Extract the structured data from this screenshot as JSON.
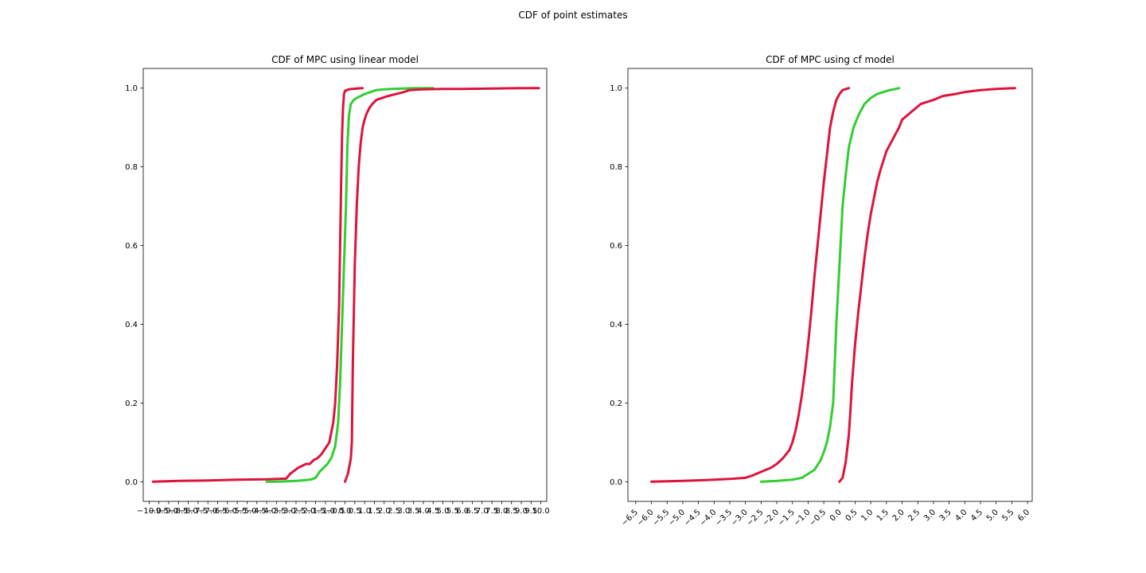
{
  "suptitle": "CDF of point estimates",
  "colors": {
    "red": "#dc143c",
    "green": "#32cd32"
  },
  "chart_data": [
    {
      "type": "line",
      "title": "CDF of MPC using linear model",
      "xlabel": "",
      "ylabel": "",
      "xlim": [
        -10.3,
        10.3
      ],
      "ylim": [
        -0.05,
        1.05
      ],
      "xticks": [
        -10.0,
        -9.5,
        -9.0,
        -8.5,
        -8.0,
        -7.5,
        -7.0,
        -6.5,
        -6.0,
        -5.5,
        -5.0,
        -4.5,
        -4.0,
        -3.5,
        -3.0,
        -2.5,
        -2.0,
        -1.5,
        -1.0,
        -0.5,
        0.0,
        0.5,
        1.0,
        1.5,
        2.0,
        2.5,
        3.0,
        3.5,
        4.0,
        4.5,
        5.0,
        5.5,
        6.0,
        6.5,
        7.0,
        7.5,
        8.0,
        8.5,
        9.0,
        9.5,
        10.0
      ],
      "xtick_labels": [
        "−10.0",
        "−9.5",
        "−9.0",
        "−8.5",
        "−8.0",
        "−7.5",
        "−7.0",
        "−6.5",
        "−6.0",
        "−5.5",
        "−5.0",
        "−4.5",
        "−4.0",
        "−3.5",
        "−3.0",
        "−2.5",
        "−2.0",
        "−1.5",
        "−1.0",
        "−0.5",
        "0.0",
        "0.5",
        "1.0",
        "1.5",
        "2.0",
        "2.5",
        "3.0",
        "3.5",
        "4.0",
        "4.5",
        "5.0",
        "5.5",
        "6.0",
        "6.5",
        "7.0",
        "7.5",
        "8.0",
        "8.5",
        "9.0",
        "9.5",
        "10.0"
      ],
      "xtick_rotation": 0,
      "yticks": [
        0.0,
        0.2,
        0.4,
        0.6,
        0.8,
        1.0
      ],
      "ytick_labels": [
        "0.0",
        "0.2",
        "0.4",
        "0.6",
        "0.8",
        "1.0"
      ],
      "series": [
        {
          "color": "#dc143c",
          "x": [
            -9.8,
            -8.5,
            -7.0,
            -5.5,
            -4.0,
            -3.0,
            -2.8,
            -2.4,
            -2.0,
            -1.8,
            -1.6,
            -1.4,
            -1.2,
            -1.0,
            -0.8,
            -0.6,
            -0.5,
            -0.4,
            -0.3,
            -0.25,
            -0.2,
            -0.15,
            -0.1,
            -0.05,
            0.0,
            0.1,
            0.2,
            0.35,
            0.6,
            0.9
          ],
          "y": [
            0.0,
            0.002,
            0.003,
            0.005,
            0.006,
            0.008,
            0.02,
            0.035,
            0.045,
            0.045,
            0.055,
            0.06,
            0.07,
            0.085,
            0.1,
            0.15,
            0.2,
            0.3,
            0.45,
            0.6,
            0.75,
            0.88,
            0.95,
            0.985,
            0.993,
            0.995,
            0.997,
            0.998,
            0.999,
            1.0
          ]
        },
        {
          "color": "#32cd32",
          "x": [
            -4.0,
            -3.5,
            -3.0,
            -2.5,
            -2.0,
            -1.7,
            -1.5,
            -1.3,
            -1.1,
            -0.9,
            -0.7,
            -0.5,
            -0.35,
            -0.25,
            -0.15,
            -0.05,
            0.05,
            0.12,
            0.2,
            0.3,
            0.45,
            0.6,
            0.8,
            1.0,
            1.3,
            1.6,
            2.0,
            2.4,
            3.0,
            3.5,
            4.5
          ],
          "y": [
            0.0,
            0.0,
            0.001,
            0.002,
            0.004,
            0.006,
            0.01,
            0.025,
            0.035,
            0.045,
            0.06,
            0.09,
            0.15,
            0.25,
            0.4,
            0.55,
            0.7,
            0.85,
            0.93,
            0.96,
            0.97,
            0.975,
            0.98,
            0.985,
            0.99,
            0.995,
            0.997,
            0.998,
            0.999,
            1.0,
            1.0
          ]
        },
        {
          "color": "#dc143c",
          "x": [
            0.0,
            0.15,
            0.3,
            0.35,
            0.4,
            0.5,
            0.6,
            0.7,
            0.8,
            0.9,
            1.0,
            1.1,
            1.25,
            1.4,
            1.6,
            1.9,
            2.2,
            2.6,
            3.0,
            3.3,
            3.6,
            4.0,
            5.0,
            6.0,
            7.5,
            9.0,
            9.9
          ],
          "y": [
            0.0,
            0.02,
            0.06,
            0.1,
            0.3,
            0.55,
            0.7,
            0.8,
            0.86,
            0.9,
            0.92,
            0.935,
            0.95,
            0.96,
            0.97,
            0.975,
            0.98,
            0.985,
            0.99,
            0.995,
            0.996,
            0.997,
            0.998,
            0.998,
            0.999,
            1.0,
            1.0
          ]
        }
      ]
    },
    {
      "type": "line",
      "title": "CDF of MPC using cf model",
      "xlabel": "",
      "ylabel": "",
      "xlim": [
        -6.75,
        6.15
      ],
      "ylim": [
        -0.05,
        1.05
      ],
      "xticks": [
        -6.5,
        -6.0,
        -5.5,
        -5.0,
        -4.5,
        -4.0,
        -3.5,
        -3.0,
        -2.5,
        -2.0,
        -1.5,
        -1.0,
        -0.5,
        0.0,
        0.5,
        1.0,
        1.5,
        2.0,
        2.5,
        3.0,
        3.5,
        4.0,
        4.5,
        5.0,
        5.5,
        6.0
      ],
      "xtick_labels": [
        "−6.5",
        "−6.0",
        "−5.5",
        "−5.0",
        "−4.5",
        "−4.0",
        "−3.5",
        "−3.0",
        "−2.5",
        "−2.0",
        "−1.5",
        "−1.0",
        "−0.5",
        "0.0",
        "0.5",
        "1.0",
        "1.5",
        "2.0",
        "2.5",
        "3.0",
        "3.5",
        "4.0",
        "4.5",
        "5.0",
        "5.5",
        "6.0"
      ],
      "xtick_rotation": -45,
      "yticks": [
        0.0,
        0.2,
        0.4,
        0.6,
        0.8,
        1.0
      ],
      "ytick_labels": [
        "0.0",
        "0.2",
        "0.4",
        "0.6",
        "0.8",
        "1.0"
      ],
      "series": [
        {
          "color": "#dc143c",
          "x": [
            -6.0,
            -5.0,
            -4.0,
            -3.5,
            -3.0,
            -2.8,
            -2.5,
            -2.2,
            -2.0,
            -1.8,
            -1.6,
            -1.5,
            -1.4,
            -1.3,
            -1.2,
            -1.1,
            -1.0,
            -0.9,
            -0.8,
            -0.7,
            -0.6,
            -0.5,
            -0.4,
            -0.3,
            -0.2,
            -0.1,
            0.0,
            0.1,
            0.3
          ],
          "y": [
            0.0,
            0.002,
            0.005,
            0.007,
            0.01,
            0.015,
            0.025,
            0.035,
            0.045,
            0.06,
            0.08,
            0.1,
            0.13,
            0.17,
            0.22,
            0.28,
            0.35,
            0.43,
            0.52,
            0.6,
            0.68,
            0.76,
            0.83,
            0.9,
            0.94,
            0.97,
            0.985,
            0.995,
            1.0
          ]
        },
        {
          "color": "#32cd32",
          "x": [
            -2.5,
            -2.0,
            -1.5,
            -1.2,
            -1.0,
            -0.8,
            -0.6,
            -0.5,
            -0.4,
            -0.3,
            -0.2,
            -0.15,
            -0.1,
            0.0,
            0.1,
            0.2,
            0.3,
            0.45,
            0.6,
            0.8,
            1.0,
            1.2,
            1.4,
            1.6,
            1.8,
            1.9
          ],
          "y": [
            0.0,
            0.002,
            0.005,
            0.01,
            0.02,
            0.03,
            0.055,
            0.075,
            0.1,
            0.14,
            0.2,
            0.3,
            0.4,
            0.55,
            0.7,
            0.78,
            0.85,
            0.9,
            0.93,
            0.96,
            0.975,
            0.985,
            0.99,
            0.995,
            0.998,
            1.0
          ]
        },
        {
          "color": "#dc143c",
          "x": [
            0.0,
            0.1,
            0.2,
            0.3,
            0.35,
            0.4,
            0.5,
            0.6,
            0.7,
            0.8,
            0.9,
            1.0,
            1.1,
            1.2,
            1.3,
            1.5,
            1.7,
            1.9,
            2.0,
            2.3,
            2.6,
            3.0,
            3.3,
            3.7,
            4.0,
            4.5,
            5.0,
            5.6
          ],
          "y": [
            0.0,
            0.01,
            0.05,
            0.12,
            0.18,
            0.25,
            0.35,
            0.43,
            0.5,
            0.57,
            0.63,
            0.68,
            0.72,
            0.76,
            0.79,
            0.84,
            0.87,
            0.9,
            0.92,
            0.94,
            0.96,
            0.97,
            0.98,
            0.985,
            0.99,
            0.995,
            0.998,
            1.0
          ]
        }
      ]
    }
  ]
}
